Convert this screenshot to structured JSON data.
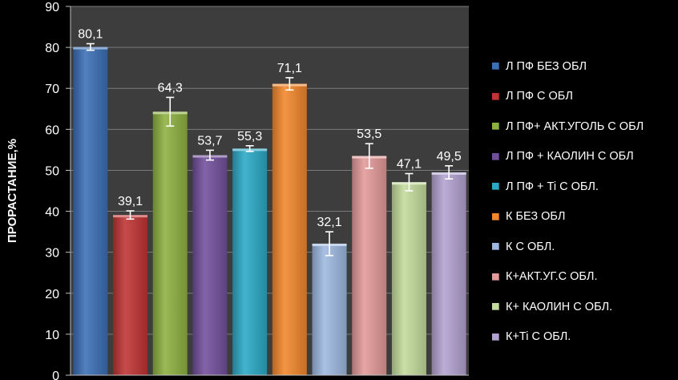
{
  "chart_data": {
    "type": "bar",
    "title": "",
    "xlabel": "",
    "ylabel": "ПРОРАСТАНИЕ,%",
    "ylim": [
      0,
      90
    ],
    "yticks": [
      "0",
      "10",
      "20",
      "30",
      "40",
      "50",
      "60",
      "70",
      "80",
      "90"
    ],
    "grid": true,
    "legend_position": "right",
    "error_bars": true,
    "series": [
      {
        "name": "Л ПФ БЕЗ ОБЛ",
        "value": 80.1,
        "label": "80,1",
        "error": 0.8,
        "color": "#3a6fb5"
      },
      {
        "name": "Л ПФ С ОБЛ",
        "value": 39.1,
        "label": "39,1",
        "error": 1.0,
        "color": "#c03332"
      },
      {
        "name": "Л ПФ+ АКТ.УГОЛЬ С ОБЛ",
        "value": 64.3,
        "label": "64,3",
        "error": 3.5,
        "color": "#8db13f"
      },
      {
        "name": "Л ПФ + КАОЛИН С ОБЛ",
        "value": 53.7,
        "label": "53,7",
        "error": 1.2,
        "color": "#714f9c"
      },
      {
        "name": "Л ПФ + Ti С ОБЛ.",
        "value": 55.3,
        "label": "55,3",
        "error": 0.7,
        "color": "#2aa9c6"
      },
      {
        "name": "К БЕЗ ОБЛ",
        "value": 71.1,
        "label": "71,1",
        "error": 1.5,
        "color": "#f2862a"
      },
      {
        "name": "К С ОБЛ.",
        "value": 32.1,
        "label": "32,1",
        "error": 2.9,
        "color": "#9db8e0"
      },
      {
        "name": "К+АКТ.УГ.С ОБЛ.",
        "value": 53.5,
        "label": "53,5",
        "error": 3.0,
        "color": "#e39a98"
      },
      {
        "name": "К+ КАОЛИН С ОБЛ.",
        "value": 47.1,
        "label": "47,1",
        "error": 2.1,
        "color": "#c3dc9c"
      },
      {
        "name": "К+Ti С ОБЛ.",
        "value": 49.5,
        "label": "49,5",
        "error": 1.6,
        "color": "#b2a2cf"
      }
    ]
  }
}
